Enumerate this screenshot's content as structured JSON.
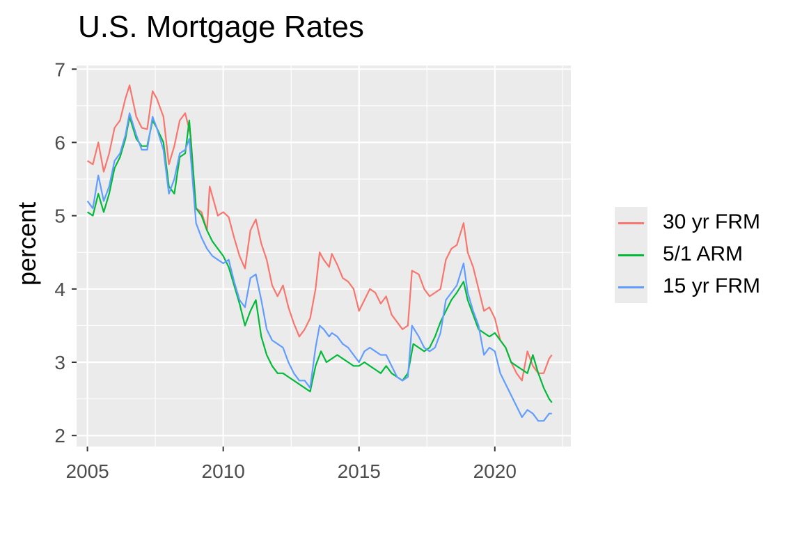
{
  "chart_data": {
    "type": "line",
    "title": "U.S. Mortgage Rates",
    "xlabel": "",
    "ylabel": "percent",
    "xlim": [
      2004.6,
      2022.8
    ],
    "ylim": [
      1.85,
      7.05
    ],
    "x_ticks": [
      "2005",
      "2010",
      "2015",
      "2020"
    ],
    "y_ticks": [
      "2",
      "3",
      "4",
      "5",
      "6",
      "7"
    ],
    "grid": true,
    "legend_position": "right",
    "series": [
      {
        "name": "30 yr FRM",
        "color": "#F8766D",
        "x": [
          2005.0,
          2005.2,
          2005.4,
          2005.6,
          2005.8,
          2006.0,
          2006.2,
          2006.4,
          2006.55,
          2006.8,
          2007.0,
          2007.2,
          2007.4,
          2007.55,
          2007.8,
          2008.0,
          2008.2,
          2008.4,
          2008.6,
          2008.8,
          2009.0,
          2009.2,
          2009.4,
          2009.5,
          2009.8,
          2010.0,
          2010.2,
          2010.4,
          2010.6,
          2010.8,
          2011.0,
          2011.2,
          2011.4,
          2011.6,
          2011.8,
          2012.0,
          2012.2,
          2012.4,
          2012.6,
          2012.8,
          2013.0,
          2013.2,
          2013.4,
          2013.55,
          2013.7,
          2013.9,
          2014.0,
          2014.2,
          2014.4,
          2014.6,
          2014.8,
          2015.0,
          2015.2,
          2015.4,
          2015.6,
          2015.8,
          2016.0,
          2016.2,
          2016.4,
          2016.6,
          2016.8,
          2016.95,
          2017.2,
          2017.4,
          2017.6,
          2017.8,
          2018.0,
          2018.2,
          2018.4,
          2018.6,
          2018.85,
          2019.0,
          2019.2,
          2019.4,
          2019.6,
          2019.8,
          2020.0,
          2020.2,
          2020.4,
          2020.6,
          2020.8,
          2021.0,
          2021.2,
          2021.4,
          2021.6,
          2021.8,
          2022.0,
          2022.1
        ],
        "y": [
          5.75,
          5.7,
          6.0,
          5.6,
          5.85,
          6.2,
          6.3,
          6.6,
          6.78,
          6.35,
          6.2,
          6.18,
          6.7,
          6.6,
          6.35,
          5.7,
          5.95,
          6.3,
          6.4,
          6.1,
          5.1,
          5.05,
          4.8,
          5.4,
          5.0,
          5.05,
          4.98,
          4.7,
          4.45,
          4.28,
          4.8,
          4.95,
          4.62,
          4.4,
          4.05,
          3.9,
          4.05,
          3.75,
          3.53,
          3.35,
          3.45,
          3.6,
          4.0,
          4.5,
          4.4,
          4.3,
          4.48,
          4.33,
          4.15,
          4.1,
          4.0,
          3.7,
          3.85,
          4.0,
          3.95,
          3.8,
          3.9,
          3.65,
          3.55,
          3.45,
          3.5,
          4.25,
          4.2,
          4.0,
          3.9,
          3.95,
          4.0,
          4.4,
          4.55,
          4.6,
          4.9,
          4.5,
          4.3,
          4.0,
          3.7,
          3.75,
          3.6,
          3.3,
          3.2,
          3.0,
          2.85,
          2.75,
          3.15,
          2.95,
          2.85,
          2.85,
          3.05,
          3.1
        ]
      },
      {
        "name": "5/1 ARM",
        "color": "#00BA38",
        "x": [
          2005.0,
          2005.2,
          2005.4,
          2005.6,
          2005.8,
          2006.0,
          2006.2,
          2006.4,
          2006.55,
          2006.8,
          2007.0,
          2007.2,
          2007.4,
          2007.55,
          2007.8,
          2008.0,
          2008.2,
          2008.4,
          2008.6,
          2008.75,
          2009.0,
          2009.2,
          2009.4,
          2009.6,
          2009.8,
          2010.0,
          2010.2,
          2010.4,
          2010.6,
          2010.8,
          2011.0,
          2011.2,
          2011.4,
          2011.6,
          2011.8,
          2012.0,
          2012.2,
          2012.4,
          2012.6,
          2012.8,
          2013.0,
          2013.2,
          2013.4,
          2013.6,
          2013.8,
          2014.0,
          2014.2,
          2014.4,
          2014.6,
          2014.8,
          2015.0,
          2015.2,
          2015.4,
          2015.6,
          2015.8,
          2016.0,
          2016.2,
          2016.4,
          2016.6,
          2016.8,
          2017.0,
          2017.2,
          2017.4,
          2017.6,
          2017.8,
          2018.0,
          2018.2,
          2018.4,
          2018.6,
          2018.85,
          2019.0,
          2019.2,
          2019.4,
          2019.6,
          2019.8,
          2020.0,
          2020.2,
          2020.4,
          2020.6,
          2020.8,
          2021.0,
          2021.2,
          2021.4,
          2021.6,
          2021.8,
          2022.0,
          2022.1
        ],
        "y": [
          5.05,
          5.0,
          5.3,
          5.05,
          5.3,
          5.65,
          5.8,
          6.05,
          6.35,
          6.05,
          5.95,
          5.95,
          6.3,
          6.2,
          6.0,
          5.4,
          5.3,
          5.8,
          5.85,
          6.3,
          5.1,
          5.0,
          4.8,
          4.65,
          4.55,
          4.45,
          4.3,
          4.05,
          3.8,
          3.5,
          3.7,
          3.85,
          3.35,
          3.1,
          2.95,
          2.85,
          2.85,
          2.8,
          2.75,
          2.7,
          2.65,
          2.6,
          2.95,
          3.15,
          3.0,
          3.05,
          3.1,
          3.05,
          3.0,
          2.95,
          2.95,
          3.0,
          2.95,
          2.9,
          2.85,
          2.95,
          2.85,
          2.8,
          2.75,
          2.85,
          3.25,
          3.2,
          3.15,
          3.2,
          3.35,
          3.55,
          3.7,
          3.85,
          3.95,
          4.1,
          3.85,
          3.65,
          3.45,
          3.4,
          3.35,
          3.4,
          3.3,
          3.2,
          3.0,
          2.95,
          2.9,
          2.85,
          3.1,
          2.85,
          2.65,
          2.5,
          2.45
        ]
      },
      {
        "name": "15 yr FRM",
        "color": "#619CFF",
        "x": [
          2005.0,
          2005.2,
          2005.4,
          2005.6,
          2005.8,
          2006.0,
          2006.2,
          2006.4,
          2006.55,
          2006.8,
          2007.0,
          2007.2,
          2007.4,
          2007.55,
          2007.8,
          2008.0,
          2008.2,
          2008.4,
          2008.6,
          2008.75,
          2009.0,
          2009.2,
          2009.4,
          2009.6,
          2009.8,
          2010.0,
          2010.2,
          2010.4,
          2010.6,
          2010.8,
          2011.0,
          2011.2,
          2011.4,
          2011.6,
          2011.8,
          2012.0,
          2012.2,
          2012.4,
          2012.6,
          2012.8,
          2013.0,
          2013.2,
          2013.4,
          2013.55,
          2013.7,
          2013.9,
          2014.0,
          2014.2,
          2014.4,
          2014.6,
          2014.8,
          2015.0,
          2015.2,
          2015.4,
          2015.6,
          2015.8,
          2016.0,
          2016.2,
          2016.4,
          2016.6,
          2016.8,
          2016.95,
          2017.2,
          2017.4,
          2017.6,
          2017.8,
          2018.0,
          2018.2,
          2018.4,
          2018.6,
          2018.85,
          2019.0,
          2019.2,
          2019.4,
          2019.6,
          2019.8,
          2020.0,
          2020.2,
          2020.4,
          2020.6,
          2020.8,
          2021.0,
          2021.2,
          2021.4,
          2021.6,
          2021.8,
          2022.0,
          2022.1
        ],
        "y": [
          5.2,
          5.1,
          5.55,
          5.2,
          5.4,
          5.75,
          5.85,
          6.1,
          6.4,
          6.1,
          5.9,
          5.9,
          6.35,
          6.2,
          5.9,
          5.3,
          5.5,
          5.85,
          5.9,
          6.05,
          4.9,
          4.7,
          4.55,
          4.45,
          4.4,
          4.35,
          4.4,
          4.1,
          3.85,
          3.75,
          4.15,
          4.2,
          3.85,
          3.45,
          3.3,
          3.25,
          3.2,
          3.0,
          2.85,
          2.75,
          2.75,
          2.65,
          3.2,
          3.5,
          3.45,
          3.35,
          3.4,
          3.35,
          3.25,
          3.2,
          3.1,
          3.0,
          3.15,
          3.2,
          3.15,
          3.1,
          3.1,
          2.95,
          2.8,
          2.75,
          2.8,
          3.5,
          3.35,
          3.2,
          3.15,
          3.2,
          3.4,
          3.85,
          3.95,
          4.05,
          4.35,
          3.95,
          3.7,
          3.5,
          3.1,
          3.2,
          3.15,
          2.85,
          2.7,
          2.55,
          2.4,
          2.25,
          2.35,
          2.3,
          2.2,
          2.2,
          2.3,
          2.3
        ]
      }
    ]
  }
}
